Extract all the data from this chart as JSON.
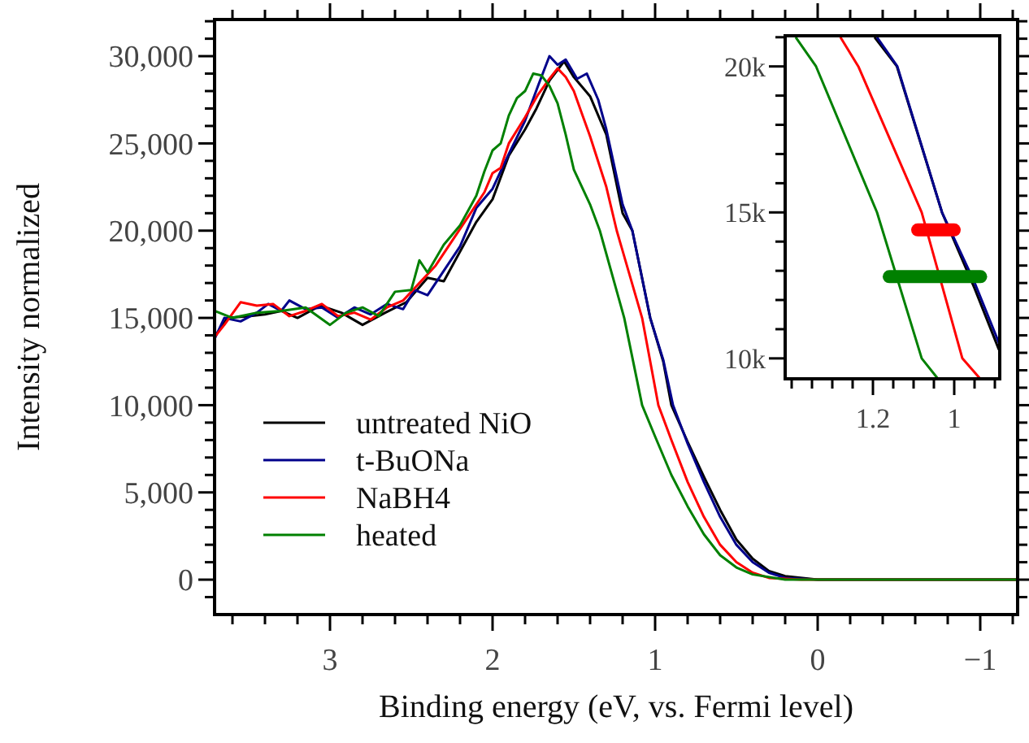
{
  "chart_data": [
    {
      "type": "line",
      "xlabel": "Binding energy (eV, vs. Fermi level)",
      "ylabel": "Intensity normalized",
      "legend": "bottom left",
      "grid": false,
      "xlim": [
        3.71,
        -1.23
      ],
      "ylim": [
        -2000,
        32100
      ],
      "xticks": [
        {
          "value": 3.6,
          "label": null
        },
        {
          "value": 3.4,
          "label": null
        },
        {
          "value": 3.2,
          "label": null
        },
        3,
        {
          "value": 2.8,
          "label": null
        },
        {
          "value": 2.6,
          "label": null
        },
        {
          "value": 2.4,
          "label": null
        },
        {
          "value": 2.2,
          "label": null
        },
        2,
        {
          "value": 1.8,
          "label": null
        },
        {
          "value": 1.6,
          "label": null
        },
        {
          "value": 1.4,
          "label": null
        },
        {
          "value": 1.2,
          "label": null
        },
        1,
        {
          "value": 0.8,
          "label": null
        },
        {
          "value": 0.6,
          "label": null
        },
        {
          "value": 0.4,
          "label": null
        },
        {
          "value": 0.2,
          "label": null
        },
        0,
        {
          "value": -0.2,
          "label": null
        },
        {
          "value": -0.4,
          "label": null
        },
        {
          "value": -0.6,
          "label": null
        },
        {
          "value": -0.8,
          "label": null
        },
        {
          "value": -1,
          "label": "−1"
        },
        {
          "value": -1.2,
          "label": null
        }
      ],
      "yticks": [
        {
          "value": -1000,
          "label": null
        },
        0,
        {
          "value": 1000,
          "label": null
        },
        {
          "value": 2000,
          "label": null
        },
        {
          "value": 3000,
          "label": null
        },
        {
          "value": 4000,
          "label": null
        },
        {
          "value": 5000,
          "label": "5,000"
        },
        {
          "value": 6000,
          "label": null
        },
        {
          "value": 7000,
          "label": null
        },
        {
          "value": 8000,
          "label": null
        },
        {
          "value": 9000,
          "label": null
        },
        {
          "value": 10000,
          "label": "10,000"
        },
        {
          "value": 11000,
          "label": null
        },
        {
          "value": 12000,
          "label": null
        },
        {
          "value": 13000,
          "label": null
        },
        {
          "value": 14000,
          "label": null
        },
        {
          "value": 15000,
          "label": "15,000"
        },
        {
          "value": 16000,
          "label": null
        },
        {
          "value": 17000,
          "label": null
        },
        {
          "value": 18000,
          "label": null
        },
        {
          "value": 19000,
          "label": null
        },
        {
          "value": 20000,
          "label": "20,000"
        },
        {
          "value": 21000,
          "label": null
        },
        {
          "value": 22000,
          "label": null
        },
        {
          "value": 23000,
          "label": null
        },
        {
          "value": 24000,
          "label": null
        },
        {
          "value": 25000,
          "label": "25,000"
        },
        {
          "value": 26000,
          "label": null
        },
        {
          "value": 27000,
          "label": null
        },
        {
          "value": 28000,
          "label": null
        },
        {
          "value": 29000,
          "label": null
        },
        {
          "value": 30000,
          "label": "30,000"
        },
        {
          "value": 31000,
          "label": null
        },
        {
          "value": 32000,
          "label": null
        }
      ],
      "series": [
        {
          "name": "untreated NiO",
          "color": "#000000",
          "x": [
            3.71,
            3.63,
            3.5,
            3.4,
            3.3,
            3.2,
            3.06,
            2.93,
            2.8,
            2.66,
            2.53,
            2.4,
            2.3,
            2.2,
            2.1,
            2.0,
            1.9,
            1.8,
            1.73,
            1.65,
            1.56,
            1.5,
            1.4,
            1.3,
            1.2,
            1.14,
            1.03,
            0.95,
            0.9,
            0.8,
            0.7,
            0.6,
            0.5,
            0.4,
            0.3,
            0.2,
            0.0,
            -1.23
          ],
          "values": [
            13900,
            15000,
            15100,
            15200,
            15400,
            15000,
            15700,
            15300,
            14600,
            15300,
            15900,
            17300,
            17100,
            18800,
            20500,
            21800,
            24300,
            25800,
            27000,
            28600,
            29700,
            28800,
            27700,
            25500,
            21000,
            20000,
            15000,
            12500,
            10000,
            7900,
            5900,
            4000,
            2300,
            1200,
            500,
            200,
            0,
            0
          ]
        },
        {
          "name": "t-BuONa",
          "color": "#00008b",
          "x": [
            3.71,
            3.65,
            3.55,
            3.45,
            3.38,
            3.3,
            3.25,
            3.15,
            3.05,
            2.95,
            2.85,
            2.75,
            2.65,
            2.55,
            2.48,
            2.4,
            2.3,
            2.2,
            2.1,
            2.0,
            1.9,
            1.8,
            1.72,
            1.65,
            1.6,
            1.55,
            1.48,
            1.42,
            1.35,
            1.3,
            1.2,
            1.14,
            1.03,
            0.95,
            0.89,
            0.8,
            0.7,
            0.6,
            0.5,
            0.4,
            0.3,
            0.2,
            0.0,
            -1.23
          ],
          "values": [
            13800,
            15000,
            14800,
            15300,
            15800,
            15400,
            16000,
            15500,
            15600,
            15000,
            15600,
            15200,
            15800,
            15500,
            16600,
            16300,
            17700,
            19100,
            21300,
            22400,
            24400,
            26300,
            28300,
            30000,
            29500,
            29800,
            28700,
            29000,
            27500,
            25800,
            21500,
            20000,
            15000,
            12600,
            10000,
            7800,
            5600,
            3600,
            2000,
            1000,
            400,
            100,
            0,
            0
          ]
        },
        {
          "name": "NaBH4",
          "color": "#ff0000",
          "x": [
            3.71,
            3.65,
            3.55,
            3.45,
            3.35,
            3.25,
            3.15,
            3.05,
            2.95,
            2.85,
            2.75,
            2.65,
            2.55,
            2.45,
            2.35,
            2.25,
            2.15,
            2.05,
            2.0,
            1.95,
            1.9,
            1.8,
            1.72,
            1.65,
            1.6,
            1.55,
            1.5,
            1.45,
            1.4,
            1.3,
            1.236,
            1.08,
            0.98,
            0.9,
            0.8,
            0.7,
            0.6,
            0.5,
            0.4,
            0.3,
            0.1,
            -1.23
          ],
          "values": [
            13900,
            14600,
            15900,
            15700,
            15800,
            15100,
            15400,
            15800,
            15100,
            15300,
            14900,
            15600,
            16000,
            17000,
            18000,
            19400,
            20800,
            22200,
            23300,
            23600,
            25000,
            26500,
            27800,
            28700,
            29300,
            28800,
            28000,
            26700,
            25400,
            22500,
            20000,
            15000,
            10000,
            8000,
            5600,
            3600,
            2000,
            1000,
            400,
            100,
            0,
            0
          ]
        },
        {
          "name": "heated",
          "color": "#008000",
          "x": [
            3.71,
            3.6,
            3.45,
            3.3,
            3.15,
            3.0,
            2.9,
            2.8,
            2.7,
            2.6,
            2.5,
            2.45,
            2.4,
            2.3,
            2.2,
            2.1,
            2.05,
            2.0,
            1.95,
            1.9,
            1.85,
            1.8,
            1.75,
            1.7,
            1.65,
            1.6,
            1.55,
            1.5,
            1.4,
            1.34,
            1.19,
            1.08,
            1.0,
            0.9,
            0.8,
            0.7,
            0.6,
            0.5,
            0.4,
            0.2,
            0.0,
            -0.5,
            -1.23
          ],
          "values": [
            15400,
            15000,
            15300,
            15400,
            15600,
            14600,
            15300,
            15600,
            15100,
            16500,
            16600,
            18300,
            17600,
            19200,
            20300,
            22000,
            23400,
            24600,
            25000,
            26600,
            27600,
            28000,
            29000,
            28900,
            28300,
            27300,
            25500,
            23500,
            21500,
            20000,
            15000,
            10000,
            8200,
            6000,
            4200,
            2600,
            1400,
            700,
            300,
            0,
            0,
            0,
            0
          ]
        }
      ]
    },
    {
      "type": "line",
      "legend": false,
      "grid": false,
      "xlim": [
        1.416,
        0.888
      ],
      "ylim": [
        9300,
        21050
      ],
      "xticks": [
        {
          "value": 1.4,
          "label": null
        },
        {
          "value": 1.35,
          "label": null
        },
        {
          "value": 1.3,
          "label": null
        },
        {
          "value": 1.25,
          "label": null
        },
        1.2,
        {
          "value": 1.15,
          "label": null
        },
        {
          "value": 1.1,
          "label": null
        },
        {
          "value": 1.05,
          "label": null
        },
        1,
        {
          "value": 0.95,
          "label": null
        },
        {
          "value": 0.9,
          "label": null
        }
      ],
      "yticks": [
        {
          "value": 10000,
          "label": "10k"
        },
        {
          "value": 11000,
          "label": null
        },
        {
          "value": 12000,
          "label": null
        },
        {
          "value": 13000,
          "label": null
        },
        {
          "value": 14000,
          "label": null
        },
        {
          "value": 15000,
          "label": "15k"
        },
        {
          "value": 16000,
          "label": null
        },
        {
          "value": 17000,
          "label": null
        },
        {
          "value": 18000,
          "label": null
        },
        {
          "value": 19000,
          "label": null
        },
        {
          "value": 20000,
          "label": "20k"
        },
        {
          "value": 21000,
          "label": null
        }
      ],
      "series": [
        {
          "color": "#000000",
          "x": [
            1.196,
            1.141,
            1.03,
            0.95,
            0.89
          ],
          "values": [
            21000,
            20000,
            15000,
            12400,
            10300
          ]
        },
        {
          "color": "#00008b",
          "x": [
            1.19,
            1.14,
            1.03,
            0.95,
            0.889
          ],
          "values": [
            21000,
            20000,
            15000,
            12600,
            10500
          ]
        },
        {
          "color": "#ff0000",
          "x": [
            1.28,
            1.236,
            1.08,
            0.98,
            0.936
          ],
          "values": [
            21000,
            20000,
            15000,
            10000,
            9300
          ]
        },
        {
          "color": "#008000",
          "x": [
            1.39,
            1.34,
            1.19,
            1.08,
            1.04
          ],
          "values": [
            21000,
            20000,
            15000,
            10000,
            9300
          ]
        },
        {
          "color": "#ff0000",
          "x": [
            1.09,
            1.0
          ],
          "values": [
            14400,
            14400
          ]
        },
        {
          "color": "#008000",
          "x": [
            1.16,
            0.935
          ],
          "values": [
            12800,
            12800
          ]
        }
      ]
    }
  ]
}
